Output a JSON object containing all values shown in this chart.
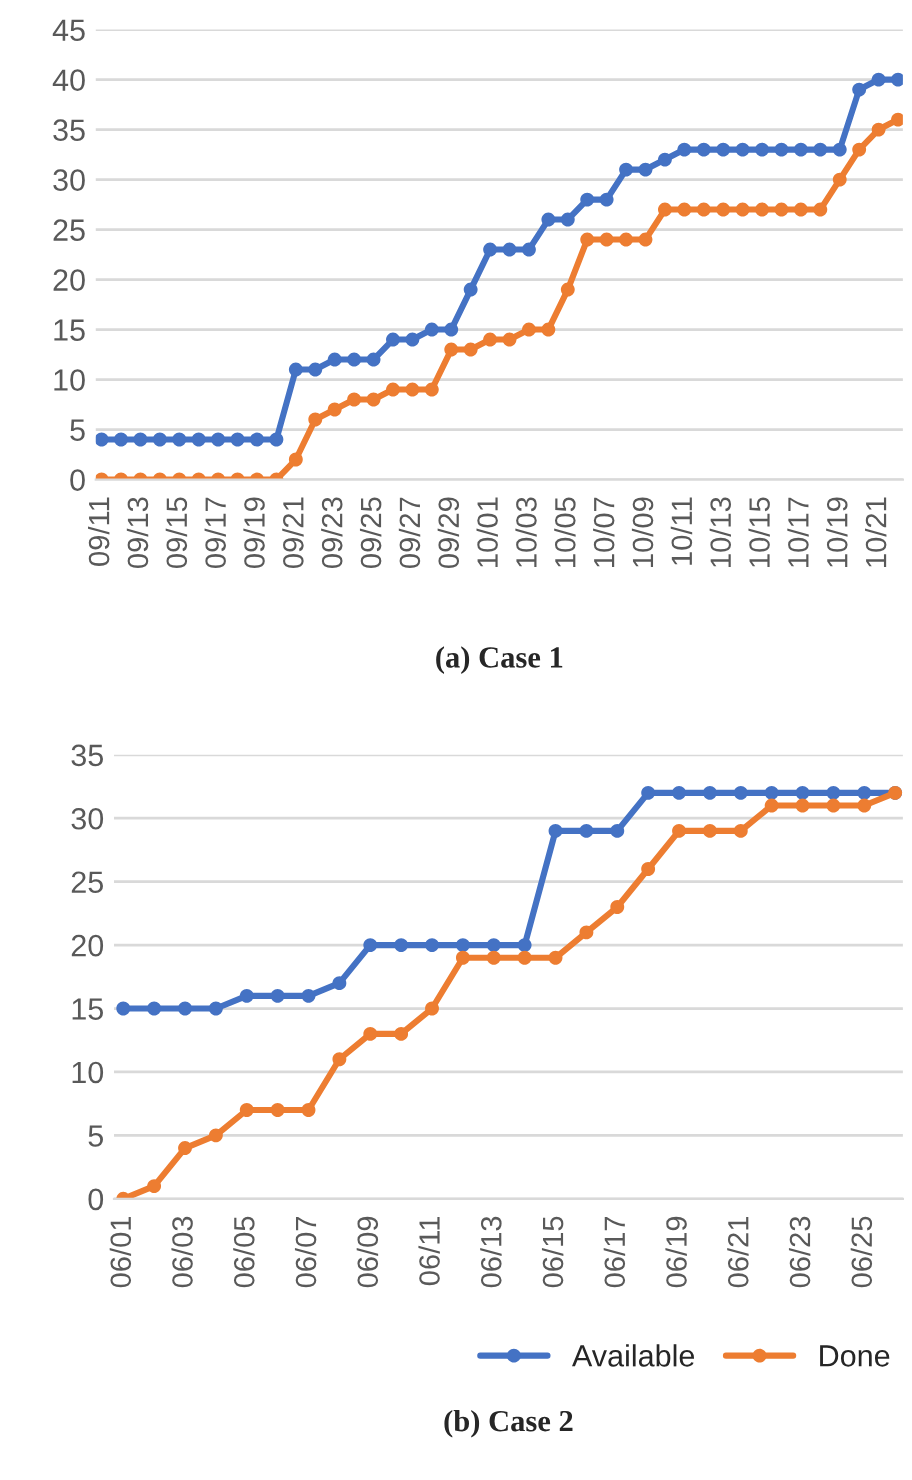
{
  "chart_data": [
    {
      "type": "line",
      "title": "(a) Case 1",
      "categories": [
        "09/11",
        null,
        "09/13",
        null,
        "09/15",
        null,
        "09/17",
        null,
        "09/19",
        null,
        "09/21",
        null,
        "09/23",
        null,
        "09/25",
        null,
        "09/27",
        null,
        "09/29",
        null,
        "10/01",
        null,
        "10/03",
        null,
        "10/05",
        null,
        "10/07",
        null,
        "10/09",
        null,
        "10/11",
        null,
        "10/13",
        null,
        "10/15",
        null,
        "10/17",
        null,
        "10/19",
        null,
        "10/21",
        null
      ],
      "series": [
        {
          "color": "#4472c4",
          "values": [
            4,
            4,
            4,
            4,
            4,
            4,
            4,
            4,
            4,
            4,
            11,
            11,
            12,
            12,
            12,
            14,
            14,
            15,
            15,
            19,
            23,
            23,
            23,
            26,
            26,
            28,
            28,
            31,
            31,
            32,
            33,
            33,
            33,
            33,
            33,
            33,
            33,
            33,
            33,
            39,
            40,
            40
          ]
        },
        {
          "color": "#ed7d31",
          "values": [
            0,
            0,
            0,
            0,
            0,
            0,
            0,
            0,
            0,
            0,
            2,
            6,
            7,
            8,
            8,
            9,
            9,
            9,
            13,
            13,
            14,
            14,
            15,
            15,
            19,
            24,
            24,
            24,
            24,
            27,
            27,
            27,
            27,
            27,
            27,
            27,
            27,
            27,
            30,
            33,
            35,
            36
          ]
        }
      ],
      "ylim": [
        0,
        45
      ],
      "yticks": [
        0,
        5,
        10,
        15,
        20,
        25,
        30,
        35,
        40,
        45
      ],
      "grid": "y",
      "marker": "circle",
      "line_style": "solid",
      "legend": false
    },
    {
      "type": "line",
      "title": "(b) Case 2",
      "categories": [
        "06/01",
        null,
        "06/03",
        null,
        "06/05",
        null,
        "06/07",
        null,
        "06/09",
        null,
        "06/11",
        null,
        "06/13",
        null,
        "06/15",
        null,
        "06/17",
        null,
        "06/19",
        null,
        "06/21",
        null,
        "06/23",
        null,
        "06/25",
        null
      ],
      "series": [
        {
          "name": "Available",
          "color": "#4472c4",
          "values": [
            15,
            15,
            15,
            15,
            16,
            16,
            16,
            17,
            20,
            20,
            20,
            20,
            20,
            20,
            29,
            29,
            29,
            32,
            32,
            32,
            32,
            32,
            32,
            32,
            32,
            32
          ]
        },
        {
          "name": "Done",
          "color": "#ed7d31",
          "values": [
            0,
            1,
            4,
            5,
            7,
            7,
            7,
            11,
            13,
            13,
            15,
            19,
            19,
            19,
            19,
            21,
            23,
            26,
            29,
            29,
            29,
            31,
            31,
            31,
            31,
            32
          ]
        }
      ],
      "ylim": [
        0,
        35
      ],
      "yticks": [
        0,
        5,
        10,
        15,
        20,
        25,
        30,
        35
      ],
      "grid": "y",
      "marker": "circle",
      "line_style": "solid",
      "legend": "bottom right"
    }
  ]
}
